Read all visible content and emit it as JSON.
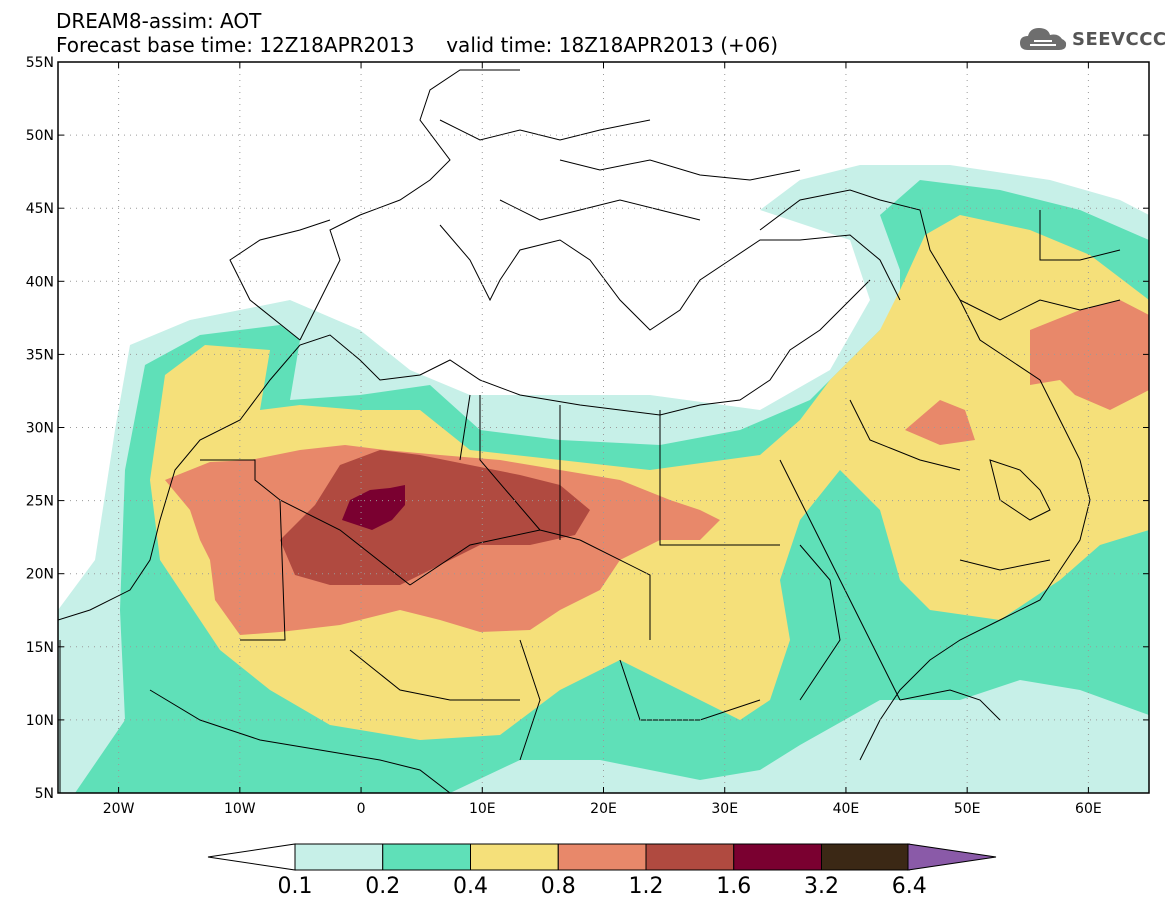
{
  "title": {
    "line1": "DREAM8-assim: AOT",
    "line2": "Forecast base time: 12Z18APR2013     valid time: 18Z18APR2013 (+06)"
  },
  "logo": {
    "text": "SEEVCCC",
    "icon": "cloud-icon"
  },
  "map": {
    "lon_range": [
      -25,
      65
    ],
    "lat_range": [
      5,
      55
    ],
    "lat_ticks": [
      "55N",
      "50N",
      "45N",
      "40N",
      "35N",
      "30N",
      "25N",
      "20N",
      "15N",
      "10N",
      "5N"
    ],
    "lon_ticks": [
      "20W",
      "10W",
      "0",
      "10E",
      "20E",
      "30E",
      "40E",
      "50E",
      "60E"
    ],
    "grid": true
  },
  "colorbar": {
    "labels": [
      "0.1",
      "0.2",
      "0.4",
      "0.8",
      "1.2",
      "1.6",
      "3.2",
      "6.4"
    ],
    "colors": [
      "#ffffff",
      "#c7f0e8",
      "#5fe0b8",
      "#f5e07a",
      "#e8886a",
      "#b04a40",
      "#7a0030",
      "#3b2815",
      "#8a5aa8"
    ]
  }
}
